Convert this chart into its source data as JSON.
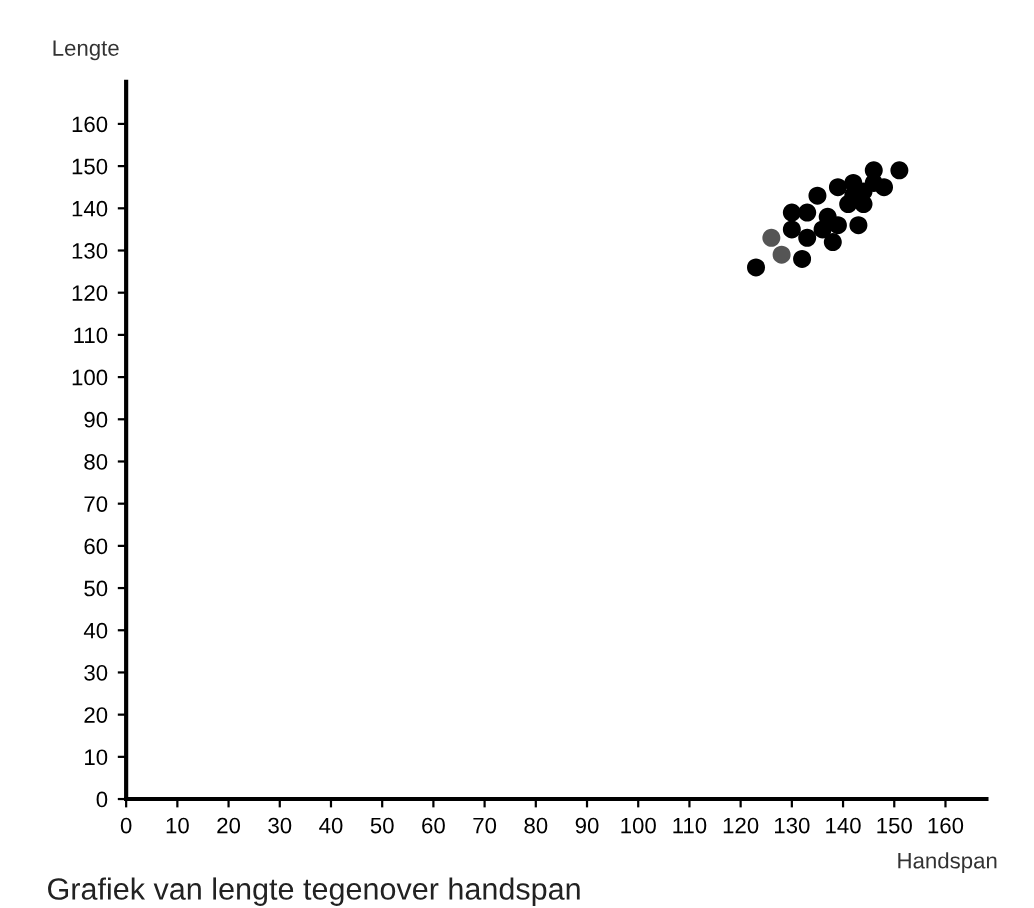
{
  "chart_data": {
    "type": "scatter",
    "xlabel": "Handspan",
    "ylabel": "Lengte",
    "annotations": [
      "Grafiek van lengte tegenover handspan"
    ],
    "x": [
      123,
      126,
      128,
      132,
      130,
      130,
      133,
      135,
      133,
      136,
      138,
      137,
      139,
      139,
      141,
      142,
      143,
      144,
      144,
      146,
      146,
      148,
      151,
      142
    ],
    "values": [
      126,
      133,
      129,
      128,
      135,
      139,
      139,
      143,
      133,
      135,
      132,
      138,
      145,
      136,
      141,
      146,
      136,
      141,
      144,
      149,
      146,
      145,
      149,
      143
    ],
    "colors": [
      "#000000",
      "#555555",
      "#555555",
      "#000000",
      "#000000",
      "#000000",
      "#000000",
      "#000000",
      "#000000",
      "#000000",
      "#000000",
      "#000000",
      "#000000",
      "#000000",
      "#000000",
      "#000000",
      "#000000",
      "#000000",
      "#000000",
      "#000000",
      "#000000",
      "#000000",
      "#000000",
      "#000000"
    ],
    "marker": "circle",
    "xlim": [
      0,
      168
    ],
    "ylim": [
      0,
      170
    ],
    "xticks": [
      0,
      10,
      20,
      30,
      40,
      50,
      60,
      70,
      80,
      90,
      100,
      110,
      120,
      130,
      140,
      150,
      160
    ],
    "yticks": [
      0,
      10,
      20,
      30,
      40,
      50,
      60,
      70,
      80,
      90,
      100,
      110,
      120,
      130,
      140,
      150,
      160
    ],
    "grid": false,
    "legend": false
  }
}
